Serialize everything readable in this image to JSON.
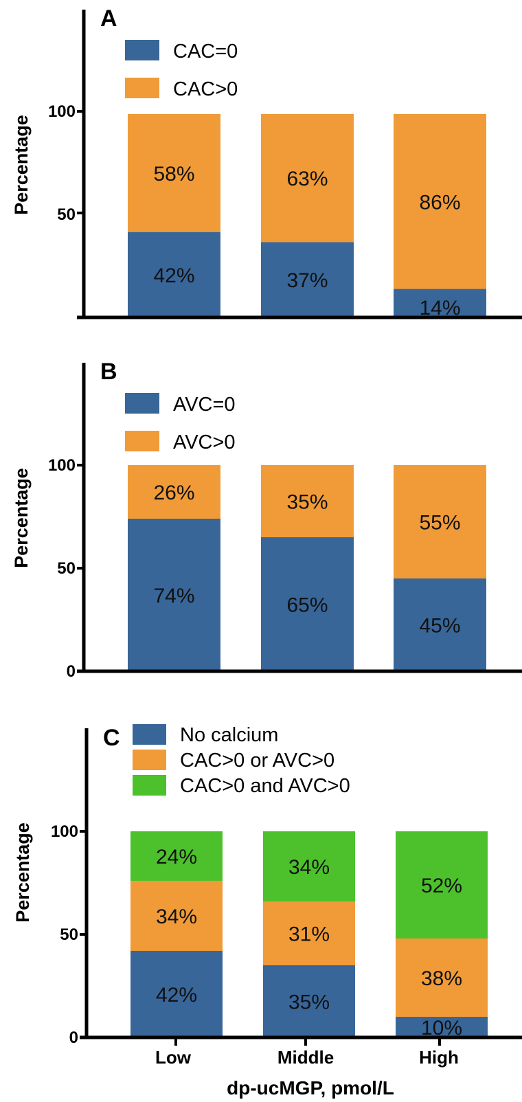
{
  "colors": {
    "blue": "#386699",
    "orange": "#F09B38",
    "green": "#4CC12C",
    "axis": "#000000"
  },
  "chart_data": [
    {
      "type": "bar",
      "stacked": true,
      "panel": "A",
      "categories": [
        "Low",
        "Middle",
        "High"
      ],
      "ylabel": "Percentage",
      "ylim": [
        0,
        150
      ],
      "yticks": [
        "50",
        "100"
      ],
      "legend": "top-left",
      "series": [
        {
          "name": "CAC=0",
          "color": "#386699",
          "values": [
            42,
            37,
            14
          ],
          "labels": [
            "42%",
            "37%",
            "14%"
          ]
        },
        {
          "name": "CAC>0",
          "color": "#F09B38",
          "values": [
            58,
            63,
            86
          ],
          "labels": [
            "58%",
            "63%",
            "86%"
          ]
        }
      ]
    },
    {
      "type": "bar",
      "stacked": true,
      "panel": "B",
      "categories": [
        "Low",
        "Middle",
        "High"
      ],
      "ylabel": "Percentage",
      "ylim": [
        0,
        150
      ],
      "yticks": [
        "0",
        "50",
        "100"
      ],
      "legend": "top-left",
      "series": [
        {
          "name": "AVC=0",
          "color": "#386699",
          "values": [
            74,
            65,
            45
          ],
          "labels": [
            "74%",
            "65%",
            "45%"
          ]
        },
        {
          "name": "AVC>0",
          "color": "#F09B38",
          "values": [
            26,
            35,
            55
          ],
          "labels": [
            "26%",
            "35%",
            "55%"
          ]
        }
      ]
    },
    {
      "type": "bar",
      "stacked": true,
      "panel": "C",
      "categories": [
        "Low",
        "Middle",
        "High"
      ],
      "ylabel": "Percentage",
      "xlabel": "dp-ucMGP, pmol/L",
      "ylim": [
        0,
        150
      ],
      "yticks": [
        "0",
        "50",
        "100"
      ],
      "legend": "top-left",
      "series": [
        {
          "name": "No calcium",
          "color": "#386699",
          "values": [
            42,
            35,
            10
          ],
          "labels": [
            "42%",
            "35%",
            "10%"
          ]
        },
        {
          "name": "CAC>0 or AVC>0",
          "color": "#F09B38",
          "values": [
            34,
            31,
            38
          ],
          "labels": [
            "34%",
            "31%",
            "38%"
          ]
        },
        {
          "name": "CAC>0 and AVC>0",
          "color": "#4CC12C",
          "values": [
            24,
            34,
            52
          ],
          "labels": [
            "24%",
            "34%",
            "52%"
          ]
        }
      ]
    }
  ]
}
